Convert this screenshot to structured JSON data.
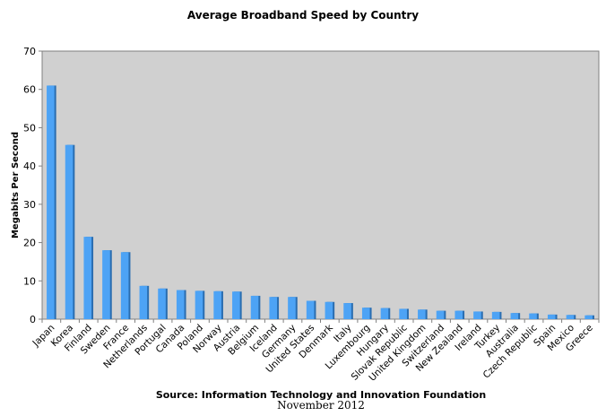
{
  "chart_data": {
    "type": "bar",
    "title": "Average Broadband Speed by Country",
    "ylabel": "Megabits Per Second",
    "xlabel": "",
    "ylim": [
      0,
      70
    ],
    "yticks": [
      0,
      10,
      20,
      30,
      40,
      50,
      60,
      70
    ],
    "grid": false,
    "categories": [
      "Japan",
      "Korea",
      "Finland",
      "Sweden",
      "France",
      "Netherlands",
      "Portugal",
      "Canada",
      "Poland",
      "Norway",
      "Austria",
      "Belgium",
      "Iceland",
      "Germany",
      "United States",
      "Denmark",
      "Italy",
      "Luxembourg",
      "Hungary",
      "Slovak Republic",
      "United Kingdom",
      "Switzerland",
      "New Zealand",
      "Ireland",
      "Turkey",
      "Australia",
      "Czech Republic",
      "Spain",
      "Mexico",
      "Greece"
    ],
    "values": [
      61,
      45.5,
      21.5,
      18,
      17.5,
      8.7,
      8,
      7.6,
      7.4,
      7.3,
      7.2,
      6.1,
      5.8,
      5.8,
      4.8,
      4.5,
      4.2,
      3,
      2.9,
      2.7,
      2.5,
      2.2,
      2.2,
      2,
      1.9,
      1.6,
      1.5,
      1.2,
      1.1,
      1
    ],
    "bar_color": "#4da3f5",
    "bar_shadow_color": "#2a6db0",
    "plot_bg_color": "#d0d0d0",
    "source": "Source: Information Technology and Innovation Foundation",
    "date": "November 2012"
  }
}
